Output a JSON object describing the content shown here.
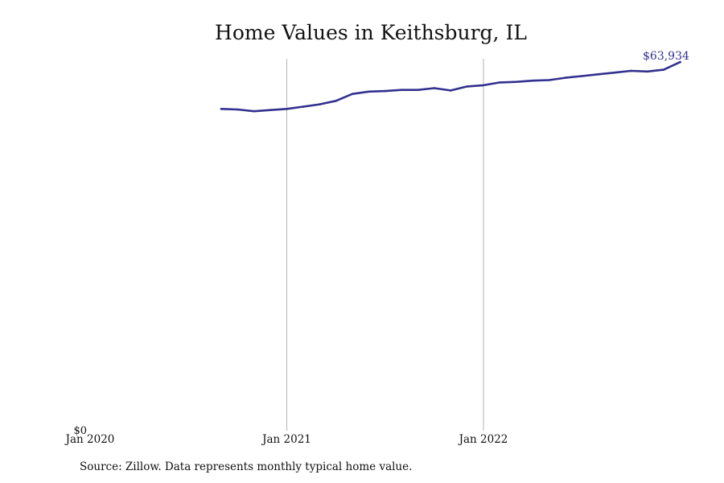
{
  "title": "Home Values in Keithsburg, IL",
  "source_note": "Source: Zillow. Data represents monthly typical home value.",
  "colors": {
    "line": "#33308f",
    "grid": "#b3b3b3",
    "text": "#111111"
  },
  "chart_data": {
    "type": "line",
    "title": "Home Values in Keithsburg, IL",
    "xlabel": "",
    "ylabel": "",
    "x_ticks": [
      "Jan 2020",
      "Jan 2021",
      "Jan 2022"
    ],
    "y_ticks": [
      "$0"
    ],
    "ylim": [
      0,
      64500
    ],
    "grid": "vertical lines at Jan 2021 and Jan 2022",
    "end_label": "$63,934",
    "series": [
      {
        "x": [
          "2020-09",
          "2020-10",
          "2020-11",
          "2020-12",
          "2021-01",
          "2021-02",
          "2021-03",
          "2021-04",
          "2021-05",
          "2021-06",
          "2021-07",
          "2021-08",
          "2021-09",
          "2021-10",
          "2021-11",
          "2021-12",
          "2022-01",
          "2022-02",
          "2022-03",
          "2022-04",
          "2022-05",
          "2022-06",
          "2022-07",
          "2022-08",
          "2022-09",
          "2022-10",
          "2022-11",
          "2022-12",
          "2023-01"
        ],
        "values": [
          55800,
          55700,
          55400,
          55600,
          55800,
          56200,
          56600,
          57200,
          58400,
          58800,
          58900,
          59100,
          59100,
          59400,
          59000,
          59700,
          59900,
          60400,
          60500,
          60700,
          60800,
          61200,
          61500,
          61800,
          62100,
          62400,
          62300,
          62600,
          63934
        ]
      }
    ]
  }
}
